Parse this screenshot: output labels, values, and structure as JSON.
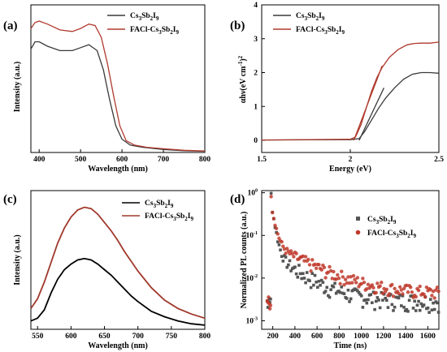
{
  "chart_data": [
    {
      "panel": "(a)",
      "type": "line",
      "xlabel": "Wavelength (nm)",
      "ylabel": "Intensity (a.u.)",
      "xlim": [
        380,
        800
      ],
      "ylim": [
        0,
        1.0
      ],
      "xticks": [
        400,
        500,
        600,
        700,
        800
      ],
      "legend_position": "top-right",
      "series": [
        {
          "name": "Cs3Sb2I9",
          "name_main": "Cs",
          "name_sub1": "3",
          "name_mid": "Sb",
          "name_sub2": "2",
          "name_end": "I",
          "name_sub3": "9",
          "color": "#3a3a3a",
          "x": [
            380,
            390,
            400,
            420,
            450,
            480,
            500,
            520,
            540,
            555,
            570,
            585,
            600,
            620,
            650,
            700,
            750,
            800
          ],
          "y": [
            0.7,
            0.75,
            0.75,
            0.72,
            0.69,
            0.69,
            0.71,
            0.73,
            0.69,
            0.56,
            0.36,
            0.18,
            0.09,
            0.05,
            0.035,
            0.02,
            0.012,
            0.008
          ]
        },
        {
          "name": "FACl-Cs3Sb2I9",
          "name_main": "FACl-Cs",
          "name_sub1": "3",
          "name_mid": "Sb",
          "name_sub2": "2",
          "name_end": "I",
          "name_sub3": "9",
          "color": "#b03a2e",
          "x": [
            380,
            390,
            400,
            420,
            450,
            480,
            500,
            520,
            535,
            550,
            565,
            580,
            595,
            610,
            630,
            660,
            700,
            750,
            800
          ],
          "y": [
            0.84,
            0.88,
            0.89,
            0.87,
            0.83,
            0.82,
            0.84,
            0.87,
            0.86,
            0.78,
            0.6,
            0.38,
            0.18,
            0.08,
            0.05,
            0.035,
            0.025,
            0.015,
            0.01
          ]
        }
      ]
    },
    {
      "panel": "(b)",
      "type": "line",
      "xlabel": "Energy (eV)",
      "ylabel": "αhν(eV cm⁻¹)²",
      "ylabel_main": "αhν(eV cm",
      "ylabel_sup": "-1",
      "ylabel_end": ")",
      "ylabel_sup2": "2",
      "xlim": [
        1.5,
        2.5
      ],
      "ylim": [
        0,
        4
      ],
      "xticks": [
        1.5,
        2.0,
        2.5
      ],
      "yticks": [
        0,
        1,
        2,
        3,
        4
      ],
      "legend_position": "top-left",
      "series": [
        {
          "name": "Cs3Sb2I9",
          "name_main": "Cs",
          "name_sub1": "3",
          "name_mid": "Sb",
          "name_sub2": "2",
          "name_end": "I",
          "name_sub3": "9",
          "color": "#3a3a3a",
          "x": [
            1.5,
            2.0,
            2.05,
            2.08,
            2.12,
            2.16,
            2.2,
            2.25,
            2.3,
            2.35,
            2.4,
            2.45,
            2.5
          ],
          "y": [
            0.01,
            0.02,
            0.05,
            0.25,
            0.6,
            0.95,
            1.25,
            1.55,
            1.8,
            1.95,
            2.0,
            2.0,
            1.98
          ]
        },
        {
          "name": "FACl-Cs3Sb2I9",
          "name_main": "FACl-Cs",
          "name_sub1": "3",
          "name_mid": "Sb",
          "name_sub2": "2",
          "name_end": "I",
          "name_sub3": "9",
          "color": "#b03a2e",
          "x": [
            1.5,
            2.0,
            2.03,
            2.06,
            2.09,
            2.12,
            2.15,
            2.18,
            2.22,
            2.27,
            2.32,
            2.36,
            2.4,
            2.45,
            2.5
          ],
          "y": [
            0.01,
            0.03,
            0.1,
            0.45,
            0.95,
            1.45,
            1.85,
            2.15,
            2.45,
            2.68,
            2.82,
            2.86,
            2.87,
            2.87,
            2.9
          ]
        }
      ],
      "tangents": [
        {
          "color": "#3a3a3a",
          "x": [
            2.05,
            2.19
          ],
          "y": [
            0.0,
            1.55
          ]
        },
        {
          "color": "#b03a2e",
          "x": [
            2.02,
            2.18
          ],
          "y": [
            0.0,
            2.2
          ]
        }
      ]
    },
    {
      "panel": "(c)",
      "type": "line",
      "xlabel": "Wavelength (nm)",
      "ylabel": "Intensity (a.u.)",
      "xlim": [
        540,
        800
      ],
      "ylim": [
        0,
        1.0
      ],
      "xticks": [
        550,
        600,
        650,
        700,
        750,
        800
      ],
      "legend_position": "top-right",
      "series": [
        {
          "name": "Cs3Sb2I9",
          "name_main": "Cs",
          "name_sub1": "3",
          "name_mid": "Sb",
          "name_sub2": "2",
          "name_end": "I",
          "name_sub3": "9",
          "color": "#000000",
          "x": [
            540,
            550,
            560,
            570,
            580,
            590,
            600,
            610,
            620,
            630,
            640,
            650,
            660,
            670,
            680,
            690,
            700,
            720,
            740,
            760,
            780,
            800
          ],
          "y": [
            0.06,
            0.08,
            0.14,
            0.26,
            0.36,
            0.43,
            0.47,
            0.5,
            0.51,
            0.5,
            0.47,
            0.43,
            0.39,
            0.34,
            0.29,
            0.24,
            0.2,
            0.13,
            0.09,
            0.06,
            0.04,
            0.03
          ]
        },
        {
          "name": "FACl-Cs3Sb2I9",
          "name_main": "FACl-Cs",
          "name_sub1": "3",
          "name_mid": "Sb",
          "name_sub2": "2",
          "name_end": "I",
          "name_sub3": "9",
          "color": "#a0392c",
          "x": [
            540,
            550,
            560,
            570,
            580,
            590,
            600,
            610,
            620,
            630,
            640,
            650,
            660,
            670,
            680,
            690,
            700,
            720,
            740,
            760,
            780,
            800
          ],
          "y": [
            0.15,
            0.22,
            0.34,
            0.48,
            0.62,
            0.73,
            0.81,
            0.86,
            0.88,
            0.87,
            0.83,
            0.77,
            0.71,
            0.64,
            0.56,
            0.49,
            0.42,
            0.3,
            0.21,
            0.15,
            0.11,
            0.08
          ]
        }
      ]
    },
    {
      "panel": "(d)",
      "type": "scatter",
      "xlabel": "Time (ns)",
      "ylabel": "Normalized PL counts (a.u.)",
      "xlim": [
        100,
        1700
      ],
      "ylim_log": [
        -3.2,
        0.05
      ],
      "xticks": [
        200,
        400,
        600,
        800,
        1000,
        1200,
        1400,
        1600
      ],
      "yticks": [
        -3,
        -2,
        -1,
        0
      ],
      "ytick_base": "10",
      "legend_position": "top-right",
      "series": [
        {
          "name": "Cs3Sb2I9",
          "name_main": "Cs",
          "name_sub1": "3",
          "name_mid": "Sb",
          "name_sub2": "2",
          "name_end": "I",
          "name_sub3": "9",
          "color": "#555555",
          "marker": "square",
          "decay": {
            "t0": 185,
            "baseline_start": [
              0.0025,
              0.0031
            ],
            "peak": 0.95,
            "a1": 0.55,
            "tau1": 25,
            "a2": 0.035,
            "tau2": 220,
            "floor": 0.0028,
            "noise": 0.45,
            "step": 12
          }
        },
        {
          "name": "FACl-Cs3Sb2I9",
          "name_main": "FACl-Cs",
          "name_sub1": "3",
          "name_mid": "Sb",
          "name_sub2": "2",
          "name_end": "I",
          "name_sub3": "9",
          "color": "#c0392b",
          "marker": "circle",
          "decay": {
            "t0": 185,
            "baseline_start": [
              0.0025,
              0.0032
            ],
            "peak": 0.85,
            "a1": 0.45,
            "tau1": 30,
            "a2": 0.055,
            "tau2": 300,
            "floor": 0.0042,
            "noise": 0.35,
            "step": 12
          }
        }
      ]
    }
  ]
}
